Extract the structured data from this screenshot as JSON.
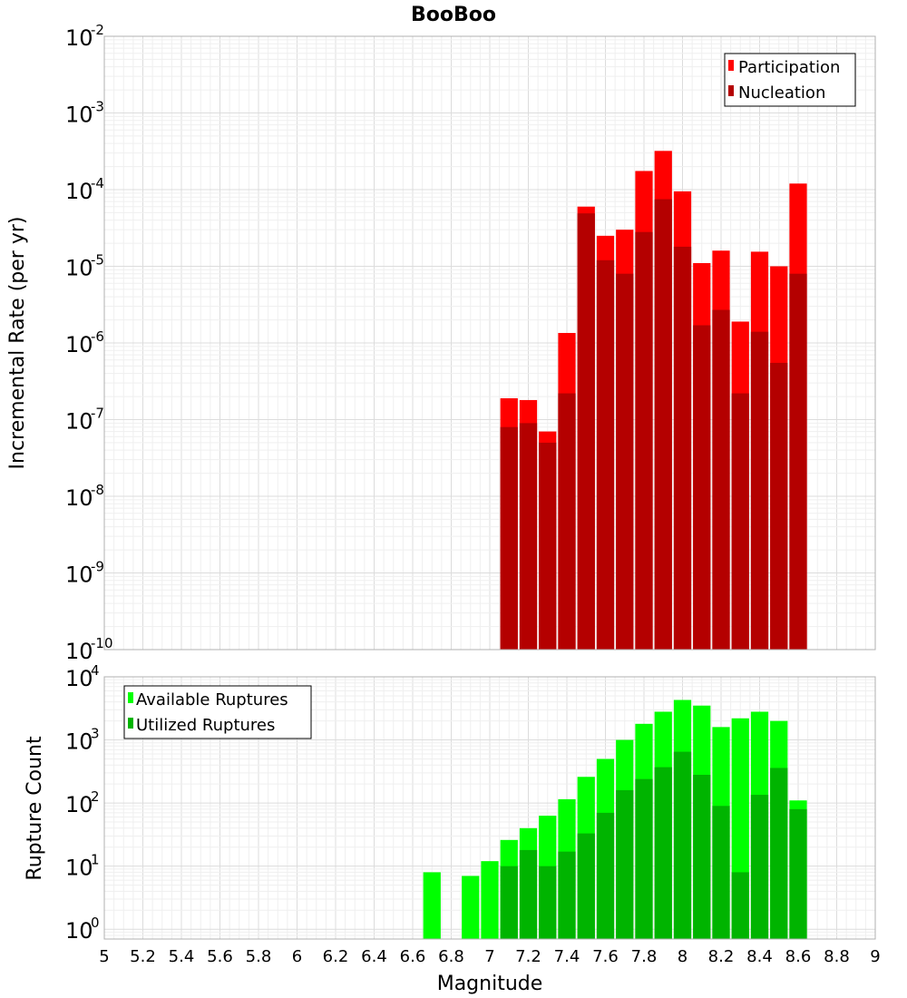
{
  "chart_data": [
    {
      "type": "bar",
      "title": "BooBoo",
      "xlabel": "",
      "ylabel": "Incremental Rate (per yr)",
      "yscale": "log",
      "ylim": [
        1e-10,
        0.01
      ],
      "xlim": [
        5,
        9
      ],
      "grid": true,
      "legend_position": "top-right",
      "x": [
        7.1,
        7.2,
        7.3,
        7.4,
        7.5,
        7.6,
        7.7,
        7.8,
        7.9,
        8.0,
        8.1,
        8.2,
        8.3,
        8.4,
        8.5,
        8.6,
        8.7
      ],
      "series": [
        {
          "name": "Participation",
          "color": "#ff0000",
          "values": [
            1.9e-07,
            1.8e-07,
            7e-08,
            1.35e-06,
            6e-05,
            2.5e-05,
            3e-05,
            0.000175,
            0.00032,
            9.5e-05,
            1.1e-05,
            1.6e-05,
            1.9e-06,
            1.55e-05,
            1e-05,
            0.00012,
            0
          ]
        },
        {
          "name": "Nucleation",
          "color": "#b40000",
          "values": [
            8e-08,
            9e-08,
            5e-08,
            2.2e-07,
            4.9e-05,
            1.2e-05,
            8e-06,
            2.8e-05,
            7.5e-05,
            1.8e-05,
            1.7e-06,
            2.7e-06,
            2.2e-07,
            1.4e-06,
            5.5e-07,
            8e-06,
            0
          ]
        }
      ]
    },
    {
      "type": "bar",
      "title": "",
      "xlabel": "Magnitude",
      "ylabel": "Rupture Count",
      "yscale": "log",
      "ylim": [
        0.7,
        10000.0
      ],
      "xlim": [
        5,
        9
      ],
      "grid": true,
      "legend_position": "top-left",
      "x": [
        6.7,
        6.8,
        6.9,
        7.0,
        7.1,
        7.2,
        7.3,
        7.4,
        7.5,
        7.6,
        7.7,
        7.8,
        7.9,
        8.0,
        8.1,
        8.2,
        8.3,
        8.4,
        8.5,
        8.6,
        8.7
      ],
      "series": [
        {
          "name": "Available Ruptures",
          "color": "#00ff00",
          "values": [
            8,
            0,
            7,
            12,
            26,
            40,
            63,
            115,
            260,
            500,
            1000,
            1800,
            2800,
            4300,
            3500,
            1600,
            2200,
            2800,
            2000,
            110,
            0
          ]
        },
        {
          "name": "Utilized Ruptures",
          "color": "#00b400",
          "values": [
            0,
            0,
            0,
            0,
            10,
            18,
            10,
            17,
            33,
            70,
            160,
            240,
            370,
            650,
            280,
            90,
            8,
            135,
            360,
            80,
            0
          ]
        }
      ]
    }
  ],
  "x_tick_labels": [
    "5",
    "5.2",
    "5.4",
    "5.6",
    "5.8",
    "6",
    "6.2",
    "6.4",
    "6.6",
    "6.8",
    "7",
    "7.2",
    "7.4",
    "7.6",
    "7.8",
    "8",
    "8.2",
    "8.4",
    "8.6",
    "8.8",
    "9"
  ],
  "top_y_exponents": [
    "-2",
    "-3",
    "-4",
    "-5",
    "-6",
    "-7",
    "-8",
    "-9",
    "-10"
  ],
  "bottom_y_exponents": [
    "4",
    "3",
    "2",
    "1",
    "0"
  ],
  "tick_base": "10"
}
